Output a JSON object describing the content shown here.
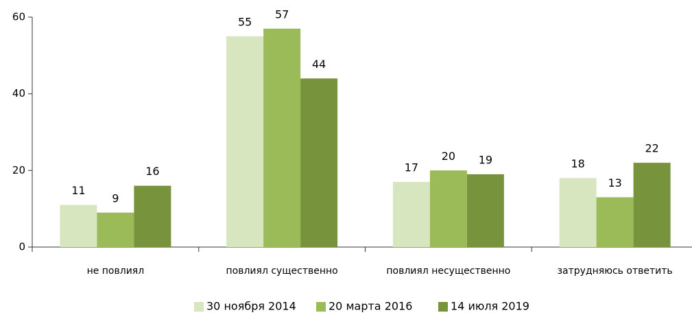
{
  "chart_data": {
    "type": "bar",
    "categories": [
      "не повлиял",
      "повлиял существенно",
      "повлиял несущественно",
      "затрудняюсь ответить"
    ],
    "series": [
      {
        "name": "30 ноября 2014",
        "color": "#d8e6bf",
        "values": [
          11,
          55,
          17,
          18
        ]
      },
      {
        "name": "20 марта 2016",
        "color": "#9bbb59",
        "values": [
          9,
          57,
          20,
          13
        ]
      },
      {
        "name": "14 июля 2019",
        "color": "#77933c",
        "values": [
          16,
          44,
          19,
          22
        ]
      }
    ],
    "ylim": [
      0,
      60
    ],
    "yticks": [
      0,
      20,
      40,
      60
    ],
    "grid": false,
    "legend": "bottom"
  }
}
